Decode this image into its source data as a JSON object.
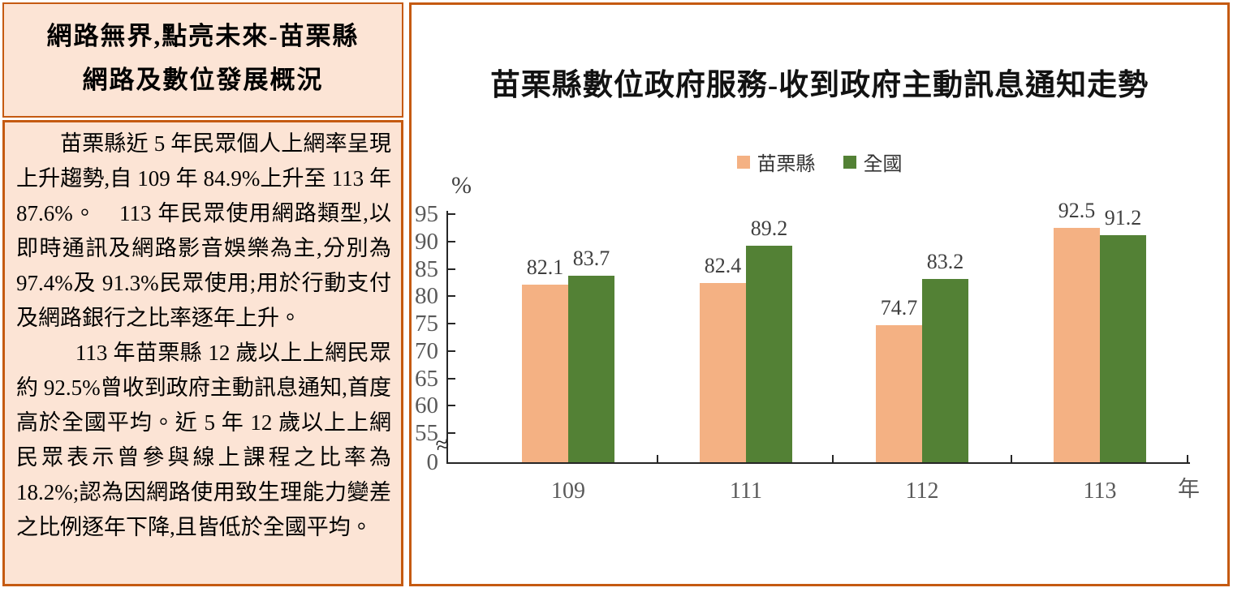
{
  "colors": {
    "panel_border": "#c55a11",
    "panel_bg": "#fce4d5",
    "axis": "#262626",
    "tick_label": "#595959",
    "value_label": "#3f3f3f",
    "series_miaoli": "#f4b183",
    "series_national": "#538135"
  },
  "left_panel": {
    "title_line1": "網路無界,點亮未來-苗栗縣",
    "title_line2": "網路及數位發展概況",
    "paragraphs": [
      "苗栗縣近 5 年民眾個人上網率呈現上升趨勢,自 109 年 84.9%上升至 113 年 87.6%。　113 年民眾使用網路類型,以即時通訊及網路影音娛樂為主,分別為 97.4%及 91.3%民眾使用;用於行動支付及網路銀行之比率逐年上升。",
      "113 年苗栗縣 12 歲以上上網民眾約 92.5%曾收到政府主動訊息通知,首度高於全國平均。近 5 年 12 歲以上上網民眾表示曾參與線上課程之比率為 18.2%;認為因網路使用致生理能力變差之比例逐年下降,且皆低於全國平均。"
    ]
  },
  "chart_data": {
    "type": "bar",
    "title": "苗栗縣數位政府服務-收到政府主動訊息通知走勢",
    "categories": [
      "109",
      "111",
      "112",
      "113"
    ],
    "series": [
      {
        "name": "苗栗縣",
        "color": "#f4b183",
        "values": [
          82.1,
          82.4,
          74.7,
          92.5
        ]
      },
      {
        "name": "全國",
        "color": "#538135",
        "values": [
          83.7,
          89.2,
          83.2,
          91.2
        ]
      }
    ],
    "xlabel": "年",
    "ylabel": "%",
    "yticks": [
      95,
      90,
      85,
      80,
      75,
      70,
      65,
      60,
      55,
      0
    ],
    "axis_break": true,
    "ylim_display": [
      55,
      95
    ],
    "grid": false,
    "legend_position": "top",
    "data_labels": true
  }
}
